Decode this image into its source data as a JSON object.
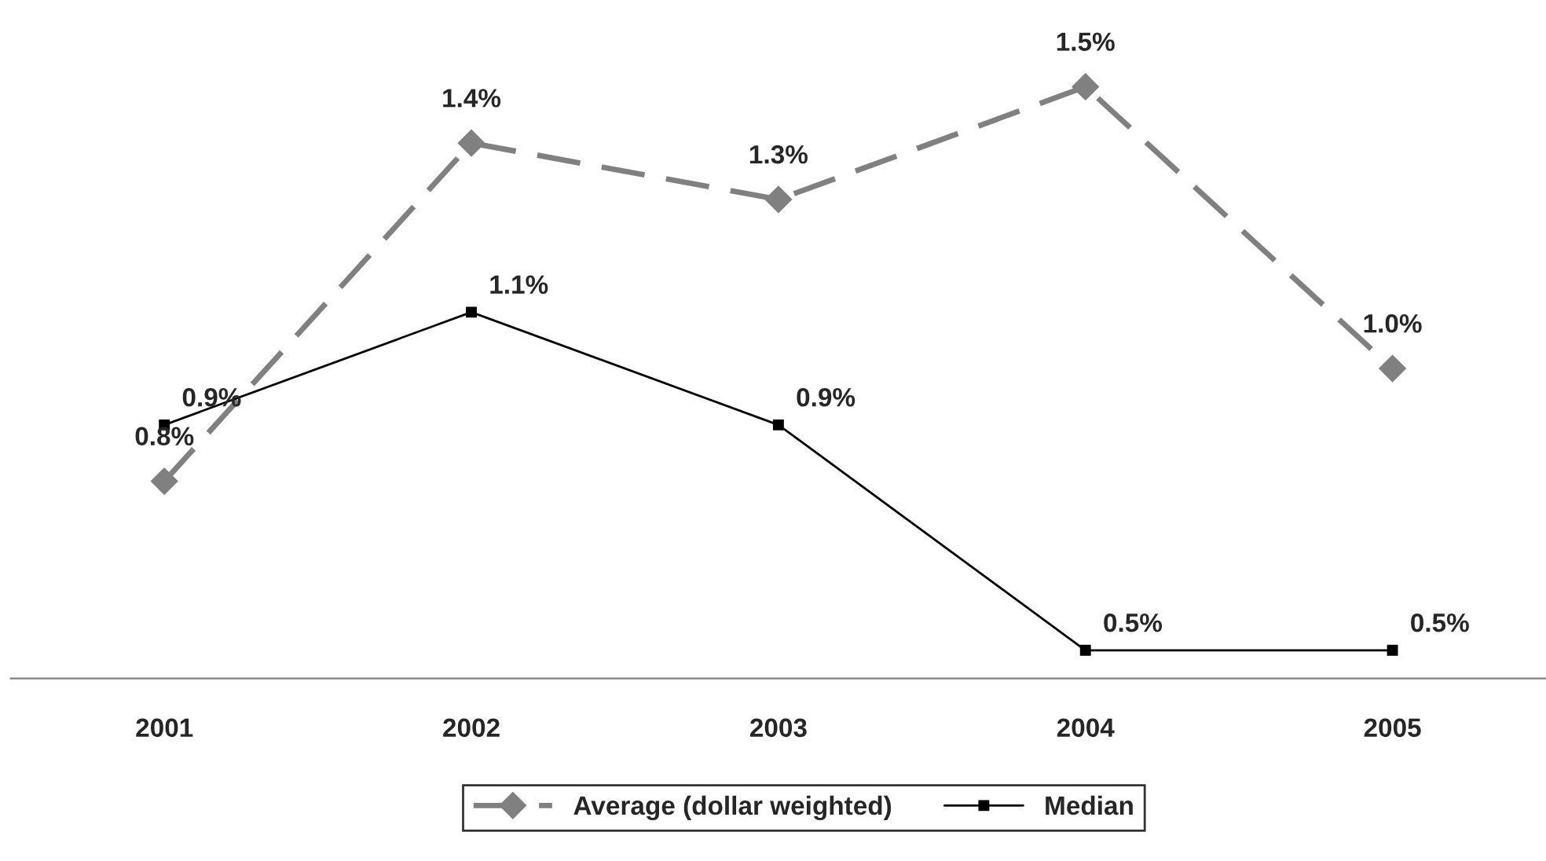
{
  "chart_data": {
    "type": "line",
    "categories": [
      "2001",
      "2002",
      "2003",
      "2004",
      "2005"
    ],
    "series": [
      {
        "name": "Average (dollar weighted)",
        "color": "#808080",
        "values": [
          0.8,
          1.4,
          1.3,
          1.5,
          1.0
        ],
        "value_labels": [
          "0.8%",
          "1.4%",
          "1.3%",
          "1.5%",
          "1.0%"
        ],
        "marker": "diamond",
        "line_style": "dashed"
      },
      {
        "name": "Median",
        "color": "#000000",
        "values": [
          0.9,
          1.1,
          0.9,
          0.5,
          0.5
        ],
        "value_labels": [
          "0.9%",
          "1.1%",
          "0.9%",
          "0.5%",
          "0.5%"
        ],
        "marker": "square",
        "line_style": "solid"
      }
    ],
    "legend": "bottom",
    "grid": false
  }
}
